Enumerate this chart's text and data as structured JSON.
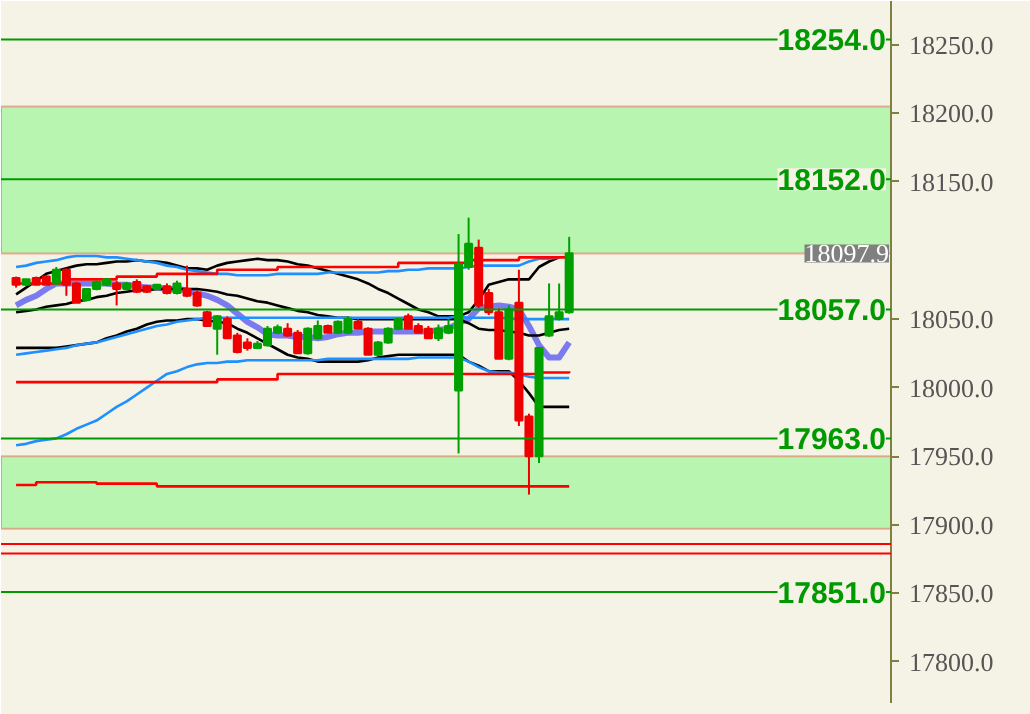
{
  "chart_data": {
    "type": "candlestick",
    "categories": [
      null,
      null,
      null,
      null,
      null,
      null,
      null,
      null,
      null,
      null,
      null,
      null,
      null,
      null,
      null,
      null,
      null,
      null,
      null,
      null,
      null,
      null,
      null,
      null,
      null,
      null,
      null,
      null,
      null,
      null,
      null,
      null,
      null,
      null,
      null,
      null,
      null,
      null,
      null,
      null,
      null,
      null,
      null,
      null,
      null,
      null,
      null,
      null,
      null,
      null,
      null,
      null,
      null,
      null,
      null,
      null
    ],
    "ohlc": [
      [
        18080,
        18081,
        18073,
        18075
      ],
      [
        18075,
        18079,
        18074,
        18079
      ],
      [
        18080,
        18081,
        18075,
        18075
      ],
      [
        18081,
        18082,
        18075,
        18075
      ],
      [
        18076,
        18088,
        18075,
        18086
      ],
      [
        18086,
        18087,
        18067,
        18075
      ],
      [
        18076,
        18077,
        18062,
        18062
      ],
      [
        18064,
        18072,
        18063,
        18072
      ],
      [
        18072,
        18078,
        18071,
        18077
      ],
      [
        18075,
        18080,
        18074,
        18079
      ],
      [
        18076,
        18078,
        18060,
        18072
      ],
      [
        18072,
        18077,
        18071,
        18076
      ],
      [
        18077,
        18079,
        18069,
        18070
      ],
      [
        18074,
        18075,
        18069,
        18070
      ],
      [
        18072,
        18075,
        18071,
        18075
      ],
      [
        18074,
        18076,
        18068,
        18069
      ],
      [
        18069,
        18078,
        18068,
        18076
      ],
      [
        18072,
        18089,
        18066,
        18067
      ],
      [
        18069,
        18071,
        18059,
        18060
      ],
      [
        18055,
        18056,
        18045,
        18045
      ],
      [
        18043,
        18053,
        18024,
        18052
      ],
      [
        18050,
        18052,
        18036,
        18036
      ],
      [
        18038,
        18040,
        18025,
        18026
      ],
      [
        18033,
        18036,
        18027,
        18029
      ],
      [
        18029,
        18034,
        18028,
        18032
      ],
      [
        18031,
        18045,
        18030,
        18043
      ],
      [
        18040,
        18046,
        18039,
        18044
      ],
      [
        18043,
        18047,
        18037,
        18038
      ],
      [
        18040,
        18042,
        18025,
        18025
      ],
      [
        18025,
        18044,
        18024,
        18043
      ],
      [
        18036,
        18049,
        18035,
        18045
      ],
      [
        18045,
        18046,
        18040,
        18040
      ],
      [
        18040,
        18049,
        18039,
        18048
      ],
      [
        18040,
        18052,
        18039,
        18050
      ],
      [
        18048,
        18050,
        18043,
        18043
      ],
      [
        18043,
        18044,
        18024,
        18024
      ],
      [
        18024,
        18034,
        18023,
        18033
      ],
      [
        18033,
        18044,
        18032,
        18043
      ],
      [
        18043,
        18051,
        18042,
        18050
      ],
      [
        18052,
        18054,
        18043,
        18043
      ],
      [
        18045,
        18047,
        18040,
        18040
      ],
      [
        18043,
        18045,
        18036,
        18036
      ],
      [
        18036,
        18046,
        18034,
        18043
      ],
      [
        18040,
        18050,
        18039,
        18045
      ],
      [
        17998,
        18112,
        17952,
        18090
      ],
      [
        18088,
        18124,
        18086,
        18105
      ],
      [
        18102,
        18108,
        18058,
        18060
      ],
      [
        18069,
        18072,
        18053,
        18055
      ],
      [
        18055,
        18058,
        18021,
        18021
      ],
      [
        18021,
        18060,
        18020,
        18057
      ],
      [
        18062,
        18086,
        17972,
        17976
      ],
      [
        17979,
        17981,
        17922,
        17950
      ],
      [
        17950,
        18029,
        17945,
        18029
      ],
      [
        18038,
        18076,
        18037,
        18052
      ],
      [
        18050,
        18076,
        18049,
        18055
      ],
      [
        18055,
        18110,
        18054,
        18098
      ]
    ],
    "series": [
      {
        "type": "line",
        "color": "#7b7bf0",
        "values": [
          18060,
          18064,
          18067,
          18072,
          18076,
          18076,
          18076,
          18076,
          18076,
          18076,
          18075,
          18075,
          18074,
          18073,
          18073,
          18072,
          18072,
          18071,
          18069,
          18067,
          18064,
          18060,
          18054,
          18048,
          18044,
          18039,
          18038,
          18038,
          18037,
          18037,
          18036,
          18037,
          18039,
          18040,
          18040,
          18041,
          18041,
          18041,
          18041,
          18041,
          18041,
          18041,
          18042,
          18043,
          18047,
          18050,
          18058,
          18059,
          18060,
          18059,
          18057,
          18045,
          18031,
          18022,
          18022,
          18033
        ]
      },
      {
        "type": "line",
        "color": "#000000",
        "values": [
          18068,
          18073,
          18078,
          18083,
          18085,
          18087,
          18089,
          18090,
          18090,
          18091,
          18092,
          18092,
          18093,
          18092,
          18092,
          18091,
          18089,
          18087,
          18087,
          18086,
          18089,
          18091,
          18092,
          18093,
          18094,
          18093,
          18093,
          18092,
          18090,
          18089,
          18087,
          18085,
          18083,
          18081,
          18079,
          18076,
          18072,
          18069,
          18065,
          18061,
          18057,
          18055,
          18052,
          18052,
          18052,
          18055,
          18064,
          18075,
          18077,
          18079,
          18079,
          18079,
          18088,
          18092,
          18095,
          null
        ]
      },
      {
        "type": "line",
        "color": "#000000",
        "values": [
          18055,
          18056,
          18057,
          18059,
          18060,
          18061,
          18063,
          18064,
          18066,
          18067,
          18069,
          18070,
          18071,
          18071,
          18072,
          18072,
          18072,
          18072,
          18072,
          18071,
          18070,
          18068,
          18067,
          18065,
          18063,
          18062,
          18060,
          18058,
          18056,
          18055,
          18053,
          18052,
          18051,
          18051,
          18050,
          18050,
          18050,
          18050,
          18050,
          18050,
          18050,
          18050,
          18050,
          18050,
          18050,
          18047,
          18043,
          18042,
          18042,
          18041,
          18040,
          18038,
          18038,
          18040,
          18042,
          18043
        ]
      },
      {
        "type": "line",
        "color": "#000000",
        "values": [
          18029,
          18029,
          18029,
          18029,
          18029,
          18030,
          18031,
          null,
          18033,
          18036,
          18038,
          18041,
          18043,
          18046,
          18048,
          18049,
          18049,
          18050,
          18050,
          18049,
          18048,
          18047,
          18043,
          18040,
          18036,
          18032,
          18028,
          18024,
          18022,
          18021,
          18019,
          18019,
          18019,
          18019,
          18019,
          18020,
          18022,
          18023,
          18024,
          18024,
          18024,
          18024,
          18024,
          18024,
          18024,
          18019,
          18016,
          18012,
          18012,
          18012,
          18005,
          17996,
          17986,
          17986,
          17986,
          17986
        ]
      },
      {
        "type": "line",
        "color": "#1e90ff",
        "values": [
          18088,
          18089,
          18091,
          18092,
          18093,
          18095,
          18096,
          18096,
          18096,
          18095,
          18095,
          18094,
          18093,
          18092,
          18091,
          18089,
          18088,
          18086,
          18085,
          18084,
          18083,
          18083,
          18082,
          18082,
          18082,
          18082,
          18083,
          18083,
          18083,
          18083,
          18083,
          18084,
          18084,
          18084,
          18084,
          18084,
          18084,
          18085,
          18085,
          18086,
          18086,
          18087,
          18087,
          18087,
          18087,
          18088,
          18089,
          18089,
          18089,
          18089,
          18089,
          18092,
          18094,
          18094,
          18095,
          null
        ]
      },
      {
        "type": "line",
        "color": "#1e90ff",
        "values": [
          18024,
          18025,
          18026,
          18027,
          18028,
          18029,
          18031,
          18032,
          18033,
          18035,
          18037,
          18039,
          18041,
          18043,
          18045,
          18046,
          18048,
          18049,
          18050,
          18051,
          18051,
          18051,
          18051,
          18051,
          18051,
          18051,
          18051,
          18051,
          18051,
          18051,
          18051,
          18051,
          18051,
          18051,
          18051,
          18051,
          18051,
          18051,
          18051,
          18051,
          18051,
          18051,
          18051,
          18051,
          18052,
          18051,
          18051,
          18051,
          18051,
          null,
          18050,
          18050,
          18050,
          18050,
          18050,
          18050
        ]
      },
      {
        "type": "line",
        "color": "#1e90ff",
        "values": [
          17958,
          17959,
          17961,
          17962,
          17963,
          17966,
          17970,
          17973,
          17976,
          17981,
          17986,
          17990,
          17995,
          18000,
          18005,
          18010,
          18012,
          18015,
          18017,
          18018,
          18018,
          18019,
          18019,
          18020,
          18020,
          18020,
          18020,
          18020,
          18020,
          18020,
          18020,
          18021,
          18021,
          18021,
          18021,
          18021,
          18021,
          18021,
          18021,
          18021,
          18022,
          18022,
          18022,
          18022,
          18022,
          18019,
          18015,
          18012,
          18011,
          18011,
          18010,
          18008,
          18007,
          18007,
          18007,
          18007
        ]
      },
      {
        "type": "step",
        "color": "#ff0000",
        "values": [
          18076,
          18076,
          18076,
          18076,
          18076,
          18079,
          18079,
          18079,
          18079,
          18079,
          18081,
          18081,
          18081,
          18081,
          18083,
          18083,
          18083,
          18083,
          18083,
          18083,
          18086,
          18086,
          18086,
          18086,
          18086,
          18086,
          18088,
          18088,
          18088,
          18088,
          18088,
          18088,
          18088,
          18088,
          18088,
          18088,
          18088,
          18088,
          18091,
          18091,
          18091,
          18091,
          18091,
          18091,
          18091,
          18093,
          18093,
          18093,
          18093,
          18093,
          18095,
          18095,
          18095,
          18095,
          18095,
          18096
        ]
      },
      {
        "type": "step",
        "color": "#ff0000",
        "values": [
          18004,
          18004,
          18004,
          18004,
          18004,
          18004,
          18004,
          18004,
          18004,
          18004,
          18004,
          18004,
          18004,
          18004,
          18004,
          18004,
          18004,
          18004,
          18004,
          18004,
          18006,
          18006,
          18006,
          18006,
          18006,
          18006,
          18010,
          18010,
          18010,
          18010,
          18010,
          18010,
          18010,
          18010,
          18010,
          18010,
          18010,
          18010,
          18010,
          18010,
          18010,
          18010,
          18010,
          18010,
          18010,
          18010,
          18010,
          18010,
          18010,
          18010,
          18010,
          18010,
          18011,
          18011,
          18011,
          18012
        ]
      },
      {
        "type": "step",
        "color": "#ff0000",
        "values": [
          17929,
          17929,
          17931,
          17931,
          17931,
          17931,
          17931,
          17931,
          17930,
          17930,
          17930,
          17930,
          17930,
          17930,
          17928,
          17928,
          17928,
          17928,
          17928,
          17928,
          17928,
          17928,
          17928,
          17928,
          17928,
          17928,
          17928,
          17928,
          17928,
          17928,
          17928,
          17928,
          17928,
          17928,
          17928,
          17928,
          17928,
          17928,
          17928,
          17928,
          17928,
          17928,
          17928,
          17928,
          17928,
          17928,
          17928,
          17928,
          17928,
          17928,
          17928,
          17928,
          17928,
          17928,
          17928,
          17928
        ]
      }
    ],
    "ylim": [
      17770,
      18282
    ],
    "yticks": [
      {
        "value": 17800,
        "label": "17800.0"
      },
      {
        "value": 17850,
        "label": "17850.0"
      },
      {
        "value": 17900,
        "label": "17900.0"
      },
      {
        "value": 17950,
        "label": "17950.0"
      },
      {
        "value": 18000,
        "label": "18000.0"
      },
      {
        "value": 18050,
        "label": "18050.0"
      },
      {
        "value": 18150,
        "label": "18150.0"
      },
      {
        "value": 18200,
        "label": "18200.0"
      },
      {
        "value": 18250,
        "label": "18250.0"
      }
    ],
    "bands": [
      {
        "axis": "y",
        "from": 18097.9,
        "to": 18205,
        "color": "#b8f5b0"
      },
      {
        "axis": "y",
        "from": 17897,
        "to": 17950,
        "color": "#b8f5b0"
      }
    ],
    "ref_lines": [
      {
        "axis": "y",
        "value": 18254,
        "label": "18254.0",
        "color": "#009900"
      },
      {
        "axis": "y",
        "value": 18152,
        "label": "18152.0",
        "color": "#009900"
      },
      {
        "axis": "y",
        "value": 18057,
        "label": "18057.0",
        "color": "#009900"
      },
      {
        "axis": "y",
        "value": 17963,
        "label": "17963.0",
        "color": "#009900"
      },
      {
        "axis": "y",
        "value": 17851,
        "label": "17851.0",
        "color": "#009900"
      },
      {
        "axis": "y",
        "value": 17886,
        "color": "#ff0000"
      },
      {
        "axis": "y",
        "value": 17879,
        "color": "#ff0000"
      }
    ],
    "annotations": [
      {
        "text": "18097.9",
        "y": 18097.9
      }
    ],
    "grid": false,
    "tick_labels": "y"
  }
}
